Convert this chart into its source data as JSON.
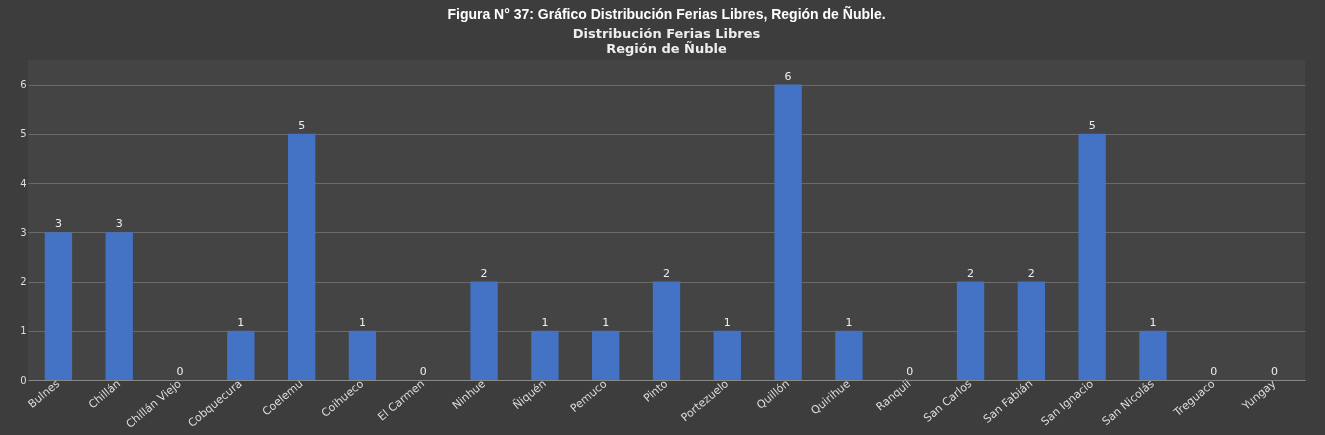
{
  "chart_data": {
    "type": "bar",
    "title": "Distribución Ferias Libres",
    "subtitle": "Región de Ñuble",
    "annotations": [
      "Figura N° 37: Gráfico Distribución Ferias Libres, Región de Ñuble."
    ],
    "categories": [
      "Bulnes",
      "Chillán",
      "Chillán Viejo",
      "Cobquecura",
      "Coelemu",
      "Coihueco",
      "El Carmen",
      "Ninhue",
      "Ñiquén",
      "Pemuco",
      "Pinto",
      "Portezuelo",
      "Quillón",
      "Quirihue",
      "Ranquil",
      "San Carlos",
      "San Fabián",
      "San Ignacio",
      "San Nicolás",
      "Treguaco",
      "Yungay"
    ],
    "values": [
      3,
      3,
      0,
      1,
      5,
      1,
      0,
      2,
      1,
      1,
      2,
      1,
      6,
      1,
      0,
      2,
      2,
      5,
      1,
      0,
      0
    ],
    "color": "#4472c4",
    "ylim": [
      0,
      6.5
    ],
    "yticks": [
      0,
      1,
      2,
      3,
      4,
      5,
      6
    ],
    "grid": "y",
    "data_labels": true
  }
}
